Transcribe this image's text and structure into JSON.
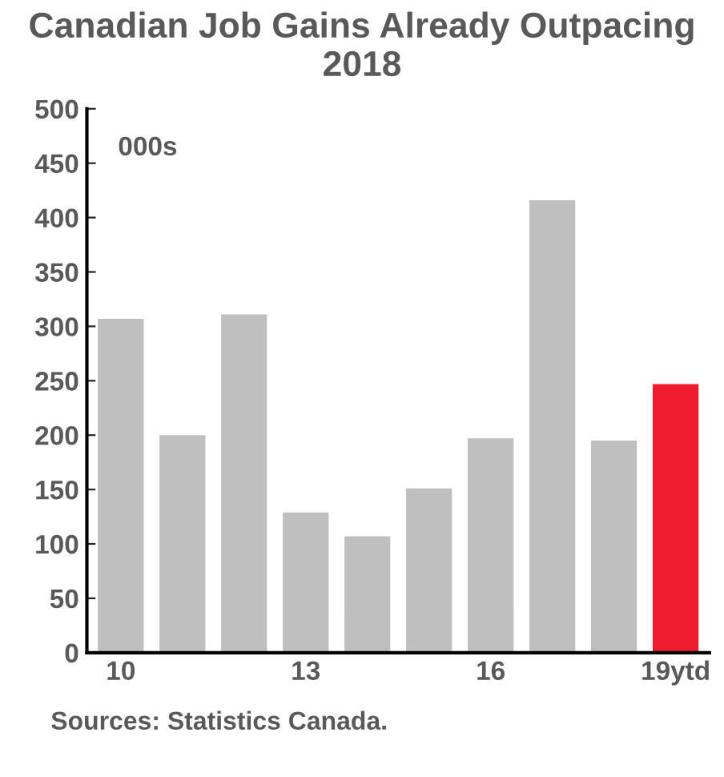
{
  "chart_data": {
    "type": "bar",
    "title": "Canadian Job Gains Already Outpacing 2018",
    "ylabel": "000s",
    "categories": [
      "10",
      null,
      null,
      "13",
      null,
      null,
      "16",
      null,
      null,
      "19ytd"
    ],
    "values": [
      308,
      201,
      312,
      130,
      108,
      152,
      198,
      417,
      196,
      248
    ],
    "colors": [
      "#bfbfbf",
      "#bfbfbf",
      "#bfbfbf",
      "#bfbfbf",
      "#bfbfbf",
      "#bfbfbf",
      "#bfbfbf",
      "#bfbfbf",
      "#bfbfbf",
      "#ed1c2e"
    ],
    "ylim": [
      0,
      500
    ],
    "yticks": [
      0,
      50,
      100,
      150,
      200,
      250,
      300,
      350,
      400,
      450,
      500
    ],
    "grid": false,
    "legend": false,
    "annotations": [
      "Sources: Statistics Canada."
    ]
  }
}
